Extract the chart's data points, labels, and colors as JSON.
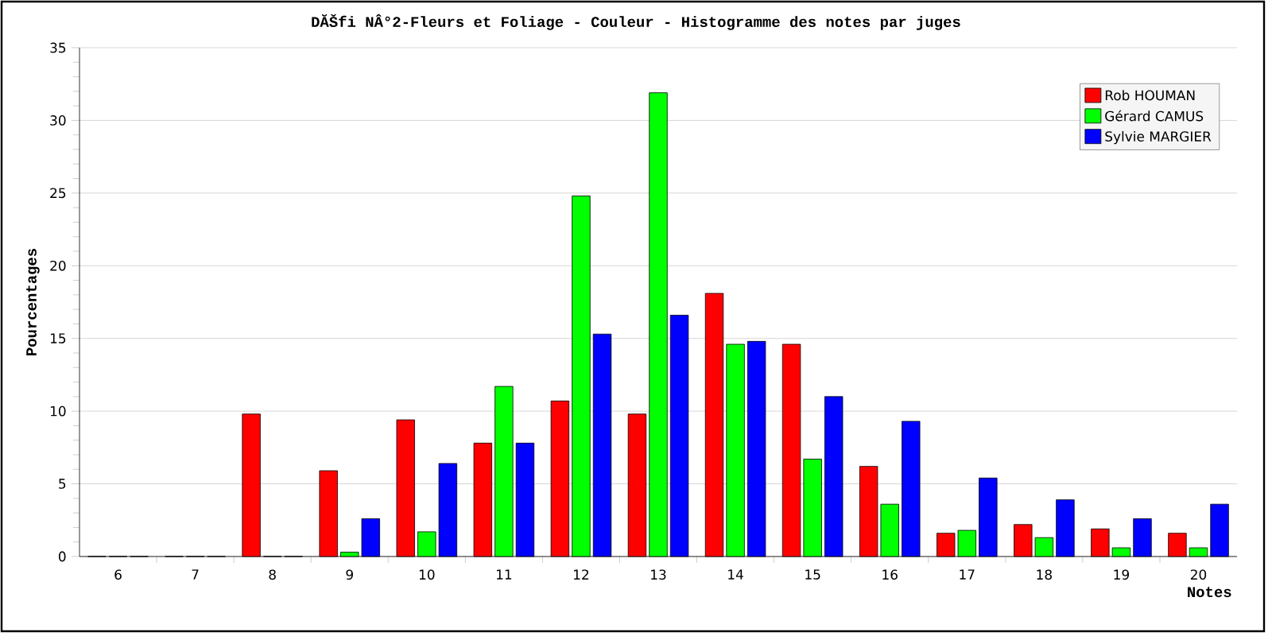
{
  "chart_data": {
    "type": "bar",
    "title": "DĂŠfi NÂ°2-Fleurs et Foliage - Couleur - Histogramme des notes par juges",
    "xlabel": "Notes",
    "ylabel": "Pourcentages",
    "categories": [
      "6",
      "7",
      "8",
      "9",
      "10",
      "11",
      "12",
      "13",
      "14",
      "15",
      "16",
      "17",
      "18",
      "19",
      "20"
    ],
    "series": [
      {
        "name": "Rob HOUMAN",
        "color": "#ff0000",
        "values": [
          0,
          0,
          9.8,
          5.9,
          9.4,
          7.8,
          10.7,
          9.8,
          18.1,
          14.6,
          6.2,
          1.6,
          2.2,
          1.9,
          1.6
        ]
      },
      {
        "name": "Gérard CAMUS",
        "color": "#00ff00",
        "values": [
          0,
          0,
          0,
          0.3,
          1.7,
          11.7,
          24.8,
          31.9,
          14.6,
          6.7,
          3.6,
          1.8,
          1.3,
          0.6,
          0.6
        ]
      },
      {
        "name": "Sylvie MARGIER",
        "color": "#0000ff",
        "values": [
          0,
          0,
          0,
          2.6,
          6.4,
          7.8,
          15.3,
          16.6,
          14.8,
          11.0,
          9.3,
          5.4,
          3.9,
          2.6,
          3.6
        ]
      }
    ],
    "ylim": [
      0,
      35
    ],
    "yticks": [
      0,
      5,
      10,
      15,
      20,
      25,
      30,
      35
    ],
    "grid": "y",
    "legend": "top right"
  }
}
